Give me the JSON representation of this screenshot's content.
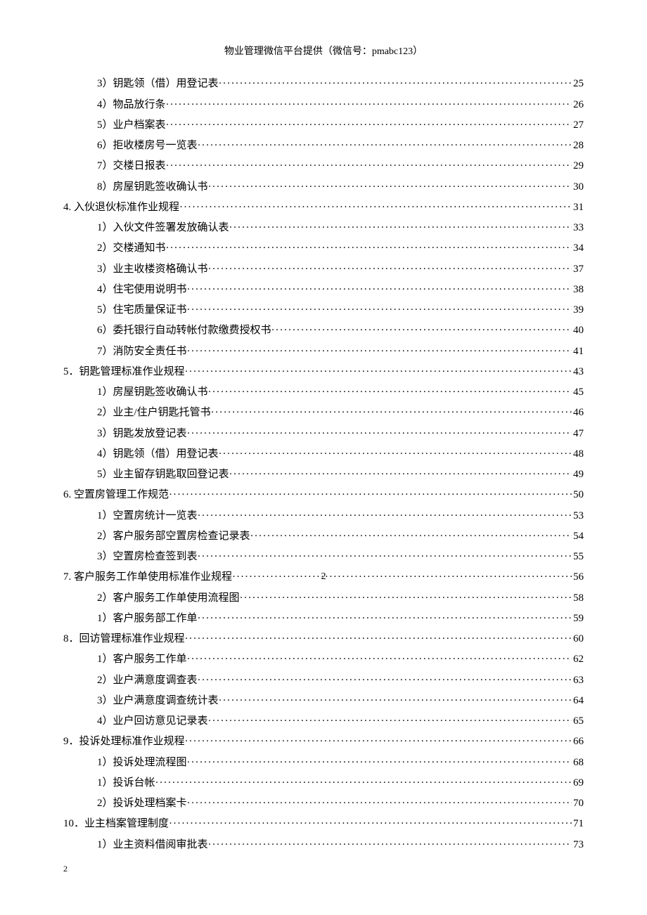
{
  "header": "物业管理微信平台提供（微信号：pmabc123）",
  "centerPageNum": "2",
  "footerPageNum": "2",
  "toc": [
    {
      "level": 2,
      "text": "3）钥匙领（借）用登记表",
      "page": "25"
    },
    {
      "level": 2,
      "text": "4）物品放行条",
      "page": "26"
    },
    {
      "level": 2,
      "text": "5）业户档案表",
      "page": "27"
    },
    {
      "level": 2,
      "text": "6）拒收楼房号一览表",
      "page": "28"
    },
    {
      "level": 2,
      "text": "7）交楼日报表",
      "page": "29"
    },
    {
      "level": 2,
      "text": "8）房屋钥匙签收确认书",
      "page": "30"
    },
    {
      "level": 1,
      "text": "4. 入伙退伙标准作业规程",
      "page": "31"
    },
    {
      "level": 2,
      "text": "1）入伙文件签署发放确认表",
      "page": "33"
    },
    {
      "level": 2,
      "text": "2）交楼通知书",
      "page": "34"
    },
    {
      "level": 2,
      "text": "3）业主收楼资格确认书",
      "page": "37"
    },
    {
      "level": 2,
      "text": "4）住宅使用说明书",
      "page": "38"
    },
    {
      "level": 2,
      "text": "5）住宅质量保证书",
      "page": "39"
    },
    {
      "level": 2,
      "text": "6）委托银行自动转帐付款缴费授权书",
      "page": "40"
    },
    {
      "level": 2,
      "text": "7）消防安全责任书",
      "page": "41"
    },
    {
      "level": 1,
      "text": "5．钥匙管理标准作业规程 ",
      "page": "43"
    },
    {
      "level": 2,
      "text": "1）房屋钥匙签收确认书",
      "page": "45"
    },
    {
      "level": 2,
      "text": "2）业主/住户钥匙托管书 ",
      "page": "46"
    },
    {
      "level": 2,
      "text": "3）钥匙发放登记表",
      "page": "47"
    },
    {
      "level": 2,
      "text": "4）钥匙领（借）用登记表",
      "page": "48"
    },
    {
      "level": 2,
      "text": "5）业主留存钥匙取回登记表",
      "page": "49"
    },
    {
      "level": 1,
      "text": "6. 空置房管理工作规范",
      "page": "50"
    },
    {
      "level": 2,
      "text": "1）空置房统计一览表",
      "page": "53"
    },
    {
      "level": 2,
      "text": "2）客户服务部空置房检查记录表",
      "page": "54"
    },
    {
      "level": 2,
      "text": "3）空置房检查签到表",
      "page": "55"
    },
    {
      "level": 1,
      "text": "7. 客户服务工作单使用标准作业规程",
      "page": "56",
      "centerNum": true
    },
    {
      "level": 2,
      "text": "2）客户服务工作单使用流程图",
      "page": "58"
    },
    {
      "level": 2,
      "text": "1）客户服务部工作单",
      "page": "59"
    },
    {
      "level": 1,
      "text": "8．回访管理标准作业规程",
      "page": " 60"
    },
    {
      "level": 2,
      "text": "1）客户服务工作单",
      "page": "62"
    },
    {
      "level": 2,
      "text": "2）业户满意度调查表",
      "page": "63"
    },
    {
      "level": 2,
      "text": "3）业户满意度调查统计表",
      "page": "64"
    },
    {
      "level": 2,
      "text": "4）业户回访意见记录表",
      "page": "65"
    },
    {
      "level": 1,
      "text": "9．投诉处理标准作业规程",
      "page": "66"
    },
    {
      "level": 2,
      "text": "1）投诉处理流程图",
      "page": "68"
    },
    {
      "level": 2,
      "text": "1）投诉台帐",
      "page": "69"
    },
    {
      "level": 2,
      "text": "2）投诉处理档案卡",
      "page": "70"
    },
    {
      "level": 1,
      "text": "10．业主档案管理制度",
      "page": "71"
    },
    {
      "level": 2,
      "text": "1）业主资料借阅审批表",
      "page": "73"
    }
  ]
}
